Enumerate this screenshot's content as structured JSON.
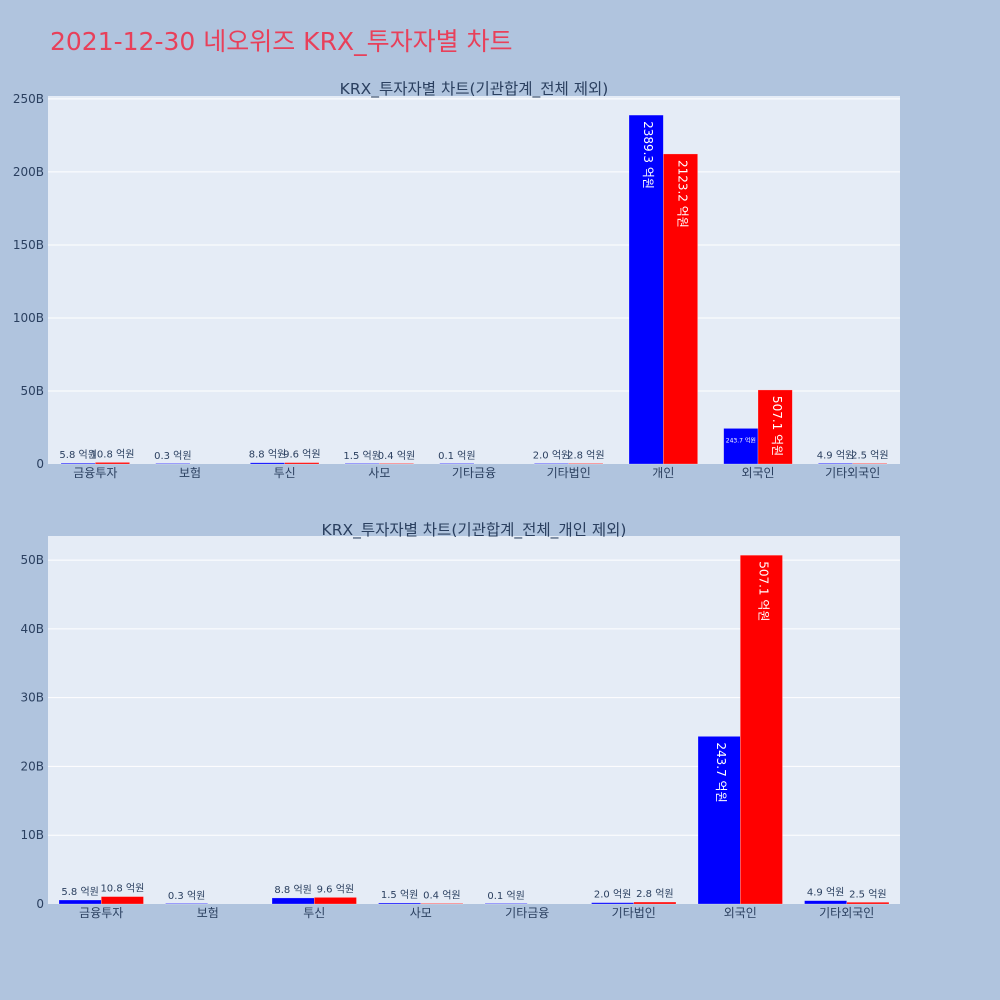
{
  "page": {
    "title": "2021-12-30 네오위즈 KRX_투자자별 차트"
  },
  "colors": {
    "page_bg": "#b0c4de",
    "plot_bg": "#e5ecf6",
    "series1": "#0000ff",
    "series2": "#ff0000",
    "grid": "#ffffff",
    "text": "#2a3f5f"
  },
  "chart_data": [
    {
      "type": "bar",
      "title": "KRX_투자자별 차트(기관합계_전체 제외)",
      "categories": [
        "금융투자",
        "보험",
        "투신",
        "사모",
        "기타금융",
        "기타법인",
        "개인",
        "외국인",
        "기타외국인"
      ],
      "series": [
        {
          "name": "series1",
          "color": "#0000ff",
          "values": [
            0.58,
            0.03,
            0.88,
            0.15,
            0.01,
            0.2,
            238.93,
            24.37,
            0.49
          ],
          "labels": [
            "5.8 억원",
            "0.3 억원",
            "8.8 억원",
            "1.5 억원",
            "0.1 억원",
            "2.0 억원",
            "2389.3 억원",
            "243.7 억원",
            "4.9 억원"
          ]
        },
        {
          "name": "series2",
          "color": "#ff0000",
          "values": [
            1.08,
            null,
            0.96,
            0.04,
            null,
            0.28,
            212.32,
            50.71,
            0.25
          ],
          "labels": [
            "10.8 억원",
            "",
            "9.6 억원",
            "0.4 억원",
            "",
            "2.8 억원",
            "2123.2 억원",
            "507.1 억원",
            "2.5 억원"
          ]
        }
      ],
      "ylim": [
        0,
        252
      ],
      "yticks": [
        0,
        50,
        100,
        150,
        200,
        250
      ],
      "ytick_labels": [
        "0",
        "50B",
        "100B",
        "150B",
        "200B",
        "250B"
      ],
      "xlabel": "",
      "ylabel": "",
      "grid": true
    },
    {
      "type": "bar",
      "title": "KRX_투자자별 차트(기관합계_전체_개인 제외)",
      "categories": [
        "금융투자",
        "보험",
        "투신",
        "사모",
        "기타금융",
        "기타법인",
        "외국인",
        "기타외국인"
      ],
      "series": [
        {
          "name": "series1",
          "color": "#0000ff",
          "values": [
            0.58,
            0.03,
            0.88,
            0.15,
            0.01,
            0.2,
            24.37,
            0.49
          ],
          "labels": [
            "5.8 억원",
            "0.3 억원",
            "8.8 억원",
            "1.5 억원",
            "0.1 억원",
            "2.0 억원",
            "243.7 억원",
            "4.9 억원"
          ]
        },
        {
          "name": "series2",
          "color": "#ff0000",
          "values": [
            1.08,
            null,
            0.96,
            0.04,
            null,
            0.28,
            50.71,
            0.25
          ],
          "labels": [
            "10.8 억원",
            "",
            "9.6 억원",
            "0.4 억원",
            "",
            "2.8 억원",
            "507.1 억원",
            "2.5 억원"
          ]
        }
      ],
      "ylim": [
        0,
        53.5
      ],
      "yticks": [
        0,
        10,
        20,
        30,
        40,
        50
      ],
      "ytick_labels": [
        "0",
        "10B",
        "20B",
        "30B",
        "40B",
        "50B"
      ],
      "xlabel": "",
      "ylabel": "",
      "grid": true
    }
  ]
}
